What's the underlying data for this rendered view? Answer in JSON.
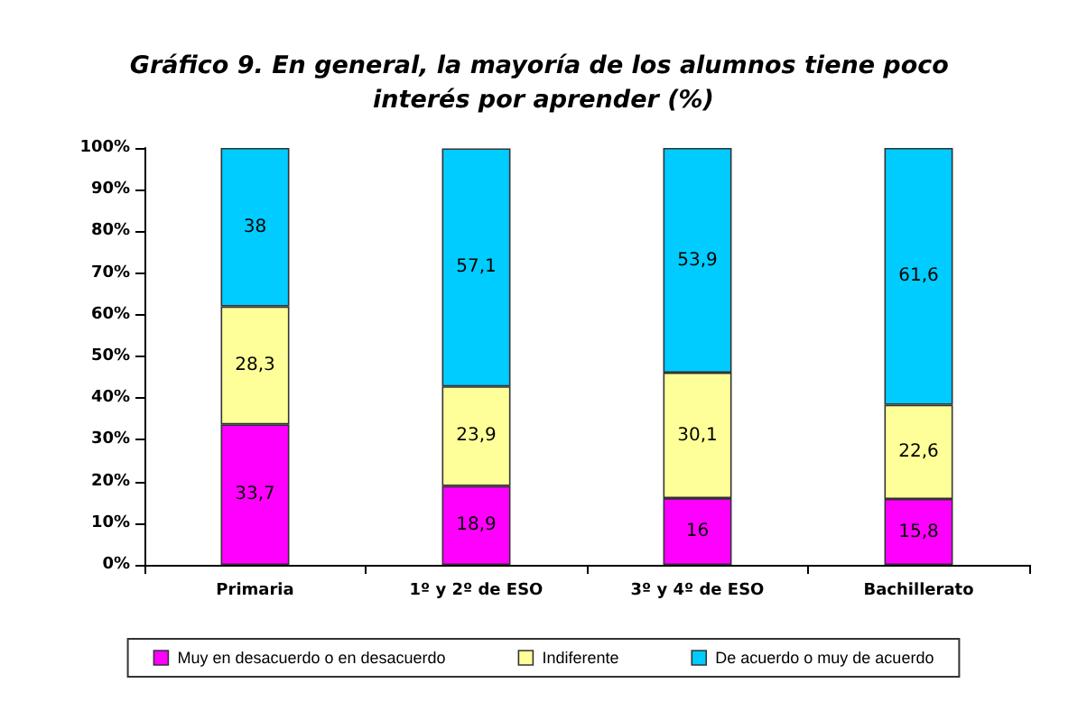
{
  "chart_data": {
    "type": "bar",
    "title": "Gráfico 9. En general, la mayoría de los alumnos tiene poco interés por aprender (%)",
    "stacked": true,
    "categories": [
      "Primaria",
      "1º y 2º de ESO",
      "3º y 4º de ESO",
      "Bachillerato"
    ],
    "series": [
      {
        "name": "Muy en desacuerdo o en desacuerdo",
        "color": "#ff00ff",
        "values": [
          33.7,
          18.9,
          16,
          15.8
        ],
        "value_labels": [
          "33,7",
          "18,9",
          "16",
          "15,8"
        ]
      },
      {
        "name": "Indiferente",
        "color": "#ffff99",
        "values": [
          28.3,
          23.9,
          30.1,
          22.6
        ],
        "value_labels": [
          "28,3",
          "23,9",
          "30,1",
          "22,6"
        ]
      },
      {
        "name": "De acuerdo o muy de acuerdo",
        "color": "#00ccff",
        "values": [
          38,
          57.1,
          53.9,
          61.6
        ],
        "value_labels": [
          "38",
          "57,1",
          "53,9",
          "61,6"
        ]
      }
    ],
    "ylim": [
      0,
      100
    ],
    "yticks": [
      {
        "value": 0,
        "label": "0%"
      },
      {
        "value": 10,
        "label": "10%"
      },
      {
        "value": 20,
        "label": "20%"
      },
      {
        "value": 30,
        "label": "30%"
      },
      {
        "value": 40,
        "label": "40%"
      },
      {
        "value": 50,
        "label": "50%"
      },
      {
        "value": 60,
        "label": "60%"
      },
      {
        "value": 70,
        "label": "70%"
      },
      {
        "value": 80,
        "label": "80%"
      },
      {
        "value": 90,
        "label": "90%"
      },
      {
        "value": 100,
        "label": "100%"
      }
    ],
    "grid": false,
    "legend": "bottom"
  }
}
